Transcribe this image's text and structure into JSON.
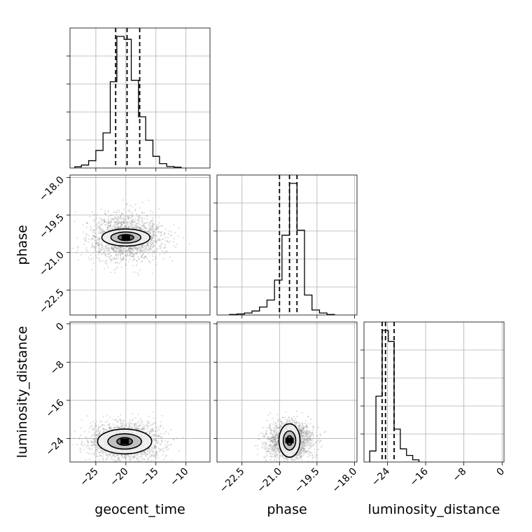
{
  "chart_data": {
    "type": "corner",
    "grid": true,
    "parameters": [
      "geocent_time",
      "phase",
      "luminosity_distance"
    ],
    "axes": {
      "geocent_time": {
        "label": "geocent_time",
        "range": [
          -29.3,
          -6.0
        ],
        "ticks": [
          -25,
          -20,
          -15,
          -10
        ],
        "tick_labels": [
          "−25",
          "−20",
          "−15",
          "−10"
        ]
      },
      "phase": {
        "label": "phase",
        "range": [
          -23.5,
          -17.9
        ],
        "ticks": [
          -22.5,
          -21.0,
          -19.5,
          -18.0
        ],
        "tick_labels": [
          "−22.5",
          "−21.0",
          "−19.5",
          "−18.0"
        ]
      },
      "luminosity_distance": {
        "label": "luminosity_distance",
        "range": [
          -28.9,
          0.4
        ],
        "ticks": [
          -24,
          -16,
          -8,
          0
        ],
        "tick_labels": [
          "−24",
          "−16",
          "−8",
          "0"
        ]
      }
    },
    "marginals": [
      {
        "param": "geocent_time",
        "quantiles": [
          -21.7,
          -19.8,
          -17.7
        ],
        "bins": [
          -28.5,
          -27.4,
          -26.2,
          -25.0,
          -23.8,
          -22.6,
          -21.5,
          -20.3,
          -19.1,
          -17.9,
          -16.7,
          -15.5,
          -14.4,
          -13.2,
          -12.0,
          -10.8
        ],
        "counts": [
          0.8,
          2.0,
          5.0,
          12.0,
          24.0,
          59.0,
          90.0,
          88.0,
          60.0,
          35.0,
          19.0,
          8.0,
          3.0,
          1.0,
          0.5
        ]
      },
      {
        "param": "phase",
        "quantiles": [
          -21.0,
          -20.6,
          -20.3
        ],
        "bins": [
          -23.0,
          -22.7,
          -22.4,
          -22.1,
          -21.8,
          -21.5,
          -21.2,
          -20.9,
          -20.6,
          -20.3,
          -20.0,
          -19.7,
          -19.4,
          -19.1,
          -18.8
        ],
        "counts": [
          0.5,
          1.0,
          2.0,
          4.0,
          8.0,
          15.0,
          35.0,
          80.0,
          132.0,
          85.0,
          20.0,
          5.0,
          2.0,
          0.5
        ]
      },
      {
        "param": "luminosity_distance",
        "quantiles": [
          -25.1,
          -24.4,
          -22.6
        ],
        "bins": [
          -27.7,
          -26.4,
          -25.1,
          -23.8,
          -22.6,
          -21.3,
          -20.0,
          -18.7,
          -17.4
        ],
        "counts": [
          5.0,
          30.0,
          60.0,
          55.0,
          15.0,
          6.0,
          3.0,
          1.0
        ]
      }
    ],
    "joint": [
      {
        "x": "geocent_time",
        "y": "phase",
        "center": [
          -20.0,
          -20.4
        ],
        "spread": [
          3.0,
          0.45
        ],
        "contours": [
          [
            4.0,
            0.34
          ],
          [
            2.5,
            0.22
          ],
          [
            1.3,
            0.12
          ]
        ]
      },
      {
        "x": "geocent_time",
        "y": "luminosity_distance",
        "center": [
          -20.2,
          -24.6
        ],
        "spread": [
          3.0,
          2.0
        ],
        "contours": [
          [
            4.5,
            2.6
          ],
          [
            2.8,
            1.6
          ],
          [
            1.3,
            0.8
          ]
        ]
      },
      {
        "x": "phase",
        "y": "luminosity_distance",
        "center": [
          -20.6,
          -24.4
        ],
        "spread": [
          0.45,
          2.0
        ],
        "contours": [
          [
            0.42,
            3.5
          ],
          [
            0.25,
            2.0
          ],
          [
            0.12,
            1.0
          ]
        ]
      }
    ]
  }
}
